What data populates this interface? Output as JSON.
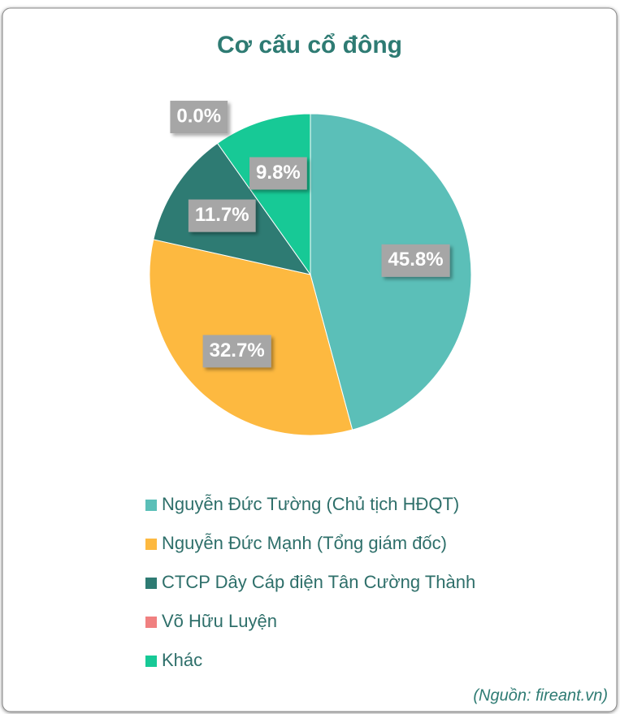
{
  "chart_data": {
    "type": "pie",
    "title": "Cơ cấu cổ đông",
    "categories": [
      "Nguyễn Đức Tường (Chủ tịch HĐQT)",
      "Nguyễn Đức Mạnh (Tổng giám đốc)",
      "CTCP Dây Cáp điện Tân Cường Thành",
      "Võ Hữu Luyện",
      "Khác"
    ],
    "values": [
      45.8,
      32.7,
      11.7,
      0.0,
      9.8
    ],
    "value_labels": [
      "45.8%",
      "32.7%",
      "11.7%",
      "0.0%",
      "9.8%"
    ],
    "colors": [
      "#5bbfb8",
      "#fdb940",
      "#2e7b73",
      "#f08080",
      "#17c996"
    ],
    "legend": "bottom",
    "source": "(Nguồn: fireant.vn)"
  }
}
